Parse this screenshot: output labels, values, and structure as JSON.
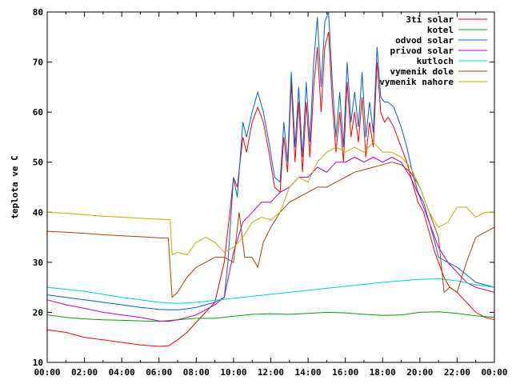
{
  "chart_data": {
    "type": "line",
    "title": "",
    "xlabel": "",
    "ylabel": "teplota ve C",
    "xlim": [
      0,
      24
    ],
    "ylim": [
      10,
      80
    ],
    "grid": false,
    "legend_position": "top-right",
    "x_tick_labels": [
      "00:00",
      "02:00",
      "04:00",
      "06:00",
      "08:00",
      "10:00",
      "12:00",
      "14:00",
      "16:00",
      "18:00",
      "20:00",
      "22:00",
      "00:00"
    ],
    "y_ticks": [
      10,
      20,
      30,
      40,
      50,
      60,
      70,
      80
    ],
    "series": [
      {
        "name": "3ti solar",
        "color": "#ff0000",
        "points": [
          [
            0,
            16.5
          ],
          [
            1,
            16.0
          ],
          [
            2,
            15.0
          ],
          [
            3,
            14.5
          ],
          [
            4,
            14.0
          ],
          [
            5,
            13.5
          ],
          [
            6,
            13.2
          ],
          [
            6.5,
            13.3
          ],
          [
            7,
            14.5
          ],
          [
            7.5,
            16
          ],
          [
            8,
            18
          ],
          [
            8.5,
            20
          ],
          [
            9,
            22
          ],
          [
            9.5,
            30
          ],
          [
            9.8,
            40
          ],
          [
            10,
            47
          ],
          [
            10.2,
            45
          ],
          [
            10.5,
            55
          ],
          [
            10.7,
            52
          ],
          [
            11,
            58
          ],
          [
            11.3,
            61
          ],
          [
            11.6,
            58
          ],
          [
            11.9,
            52
          ],
          [
            12.2,
            45
          ],
          [
            12.5,
            44
          ],
          [
            12.7,
            55
          ],
          [
            12.9,
            48
          ],
          [
            13.1,
            66
          ],
          [
            13.3,
            50
          ],
          [
            13.5,
            62
          ],
          [
            13.7,
            48
          ],
          [
            13.9,
            62
          ],
          [
            14.1,
            51
          ],
          [
            14.3,
            65
          ],
          [
            14.5,
            73
          ],
          [
            14.7,
            60
          ],
          [
            14.9,
            73
          ],
          [
            15.1,
            76
          ],
          [
            15.3,
            62
          ],
          [
            15.5,
            52
          ],
          [
            15.7,
            60
          ],
          [
            15.9,
            50
          ],
          [
            16.1,
            66
          ],
          [
            16.3,
            55
          ],
          [
            16.5,
            60
          ],
          [
            16.7,
            54
          ],
          [
            16.9,
            63
          ],
          [
            17.1,
            51
          ],
          [
            17.3,
            58
          ],
          [
            17.5,
            53
          ],
          [
            17.7,
            70
          ],
          [
            17.9,
            60
          ],
          [
            18.1,
            58
          ],
          [
            18.3,
            59
          ],
          [
            18.6,
            57
          ],
          [
            19,
            53
          ],
          [
            19.3,
            50
          ],
          [
            19.6,
            46
          ],
          [
            19.9,
            42
          ],
          [
            20.2,
            40
          ],
          [
            20.5,
            36
          ],
          [
            20.8,
            32
          ],
          [
            21,
            30
          ],
          [
            21.3,
            27
          ],
          [
            21.6,
            25
          ],
          [
            22,
            24
          ],
          [
            22.5,
            22
          ],
          [
            23,
            20
          ],
          [
            23.5,
            19
          ],
          [
            24,
            18.5
          ]
        ]
      },
      {
        "name": "kotel",
        "color": "#00a000",
        "points": [
          [
            0,
            19.5
          ],
          [
            1,
            19.0
          ],
          [
            2,
            18.7
          ],
          [
            3,
            18.5
          ],
          [
            4,
            18.4
          ],
          [
            5,
            18.3
          ],
          [
            6,
            18.2
          ],
          [
            7,
            18.5
          ],
          [
            8,
            18.8
          ],
          [
            9,
            18.8
          ],
          [
            10,
            19.2
          ],
          [
            11,
            19.6
          ],
          [
            12,
            19.7
          ],
          [
            13,
            19.6
          ],
          [
            14,
            19.8
          ],
          [
            15,
            20.0
          ],
          [
            16,
            19.9
          ],
          [
            17,
            19.6
          ],
          [
            18,
            19.4
          ],
          [
            19,
            19.5
          ],
          [
            20,
            20.0
          ],
          [
            21,
            20.1
          ],
          [
            22,
            19.8
          ],
          [
            23,
            19.3
          ],
          [
            24,
            19.0
          ]
        ]
      },
      {
        "name": "odvod solar",
        "color": "#0060e0",
        "points": [
          [
            0,
            23.5
          ],
          [
            1,
            23.0
          ],
          [
            2,
            22.5
          ],
          [
            3,
            22.0
          ],
          [
            4,
            21.5
          ],
          [
            5,
            21.0
          ],
          [
            6,
            20.6
          ],
          [
            6.5,
            20.5
          ],
          [
            7,
            20.5
          ],
          [
            7.5,
            20.7
          ],
          [
            8,
            21
          ],
          [
            8.5,
            21.5
          ],
          [
            9,
            22
          ],
          [
            9.5,
            23
          ],
          [
            9.7,
            30
          ],
          [
            10,
            47
          ],
          [
            10.2,
            43
          ],
          [
            10.5,
            58
          ],
          [
            10.7,
            55
          ],
          [
            11,
            60
          ],
          [
            11.3,
            64
          ],
          [
            11.6,
            60
          ],
          [
            11.9,
            54
          ],
          [
            12.2,
            47
          ],
          [
            12.5,
            46
          ],
          [
            12.7,
            58
          ],
          [
            12.9,
            50
          ],
          [
            13.1,
            68
          ],
          [
            13.3,
            53
          ],
          [
            13.5,
            65
          ],
          [
            13.7,
            51
          ],
          [
            13.9,
            66
          ],
          [
            14.1,
            54
          ],
          [
            14.3,
            70
          ],
          [
            14.5,
            79
          ],
          [
            14.7,
            65
          ],
          [
            14.9,
            78
          ],
          [
            15.1,
            80
          ],
          [
            15.3,
            66
          ],
          [
            15.5,
            55
          ],
          [
            15.7,
            64
          ],
          [
            15.9,
            53
          ],
          [
            16.1,
            70
          ],
          [
            16.3,
            58
          ],
          [
            16.5,
            64
          ],
          [
            16.7,
            57
          ],
          [
            16.9,
            68
          ],
          [
            17.1,
            55
          ],
          [
            17.3,
            62
          ],
          [
            17.5,
            56
          ],
          [
            17.7,
            73
          ],
          [
            17.9,
            63
          ],
          [
            18.1,
            62
          ],
          [
            18.3,
            62
          ],
          [
            18.6,
            61
          ],
          [
            19,
            57
          ],
          [
            19.3,
            53
          ],
          [
            19.6,
            48
          ],
          [
            19.9,
            44
          ],
          [
            20.2,
            42
          ],
          [
            20.5,
            38
          ],
          [
            20.8,
            34
          ],
          [
            21,
            31
          ],
          [
            21.5,
            30
          ],
          [
            22,
            29
          ],
          [
            22.5,
            27.5
          ],
          [
            23,
            26
          ],
          [
            23.5,
            25.5
          ],
          [
            24,
            25
          ]
        ]
      },
      {
        "name": "privod solar",
        "color": "#c000c0",
        "points": [
          [
            0,
            22.5
          ],
          [
            1,
            21.5
          ],
          [
            2,
            20.8
          ],
          [
            3,
            20.0
          ],
          [
            4,
            19.5
          ],
          [
            5,
            19.0
          ],
          [
            6,
            18.3
          ],
          [
            6.5,
            18.2
          ],
          [
            7,
            18.5
          ],
          [
            8,
            19.5
          ],
          [
            9,
            21.5
          ],
          [
            9.5,
            23
          ],
          [
            10,
            32
          ],
          [
            10.5,
            38
          ],
          [
            11,
            40
          ],
          [
            11.5,
            42
          ],
          [
            12,
            42
          ],
          [
            12.5,
            44
          ],
          [
            13,
            45
          ],
          [
            13.5,
            47
          ],
          [
            14,
            47
          ],
          [
            14.5,
            49
          ],
          [
            15,
            48
          ],
          [
            15.5,
            50
          ],
          [
            16,
            50
          ],
          [
            16.5,
            51
          ],
          [
            17,
            50
          ],
          [
            17.5,
            51
          ],
          [
            18,
            50
          ],
          [
            18.5,
            51
          ],
          [
            19,
            50
          ],
          [
            19.5,
            47
          ],
          [
            20,
            43
          ],
          [
            20.5,
            38
          ],
          [
            21,
            33
          ],
          [
            21.5,
            30
          ],
          [
            22,
            28
          ],
          [
            22.5,
            26
          ],
          [
            23,
            25
          ],
          [
            23.5,
            24.5
          ],
          [
            24,
            24
          ]
        ]
      },
      {
        "name": "kutloch",
        "color": "#00d0d0",
        "points": [
          [
            0,
            25
          ],
          [
            1,
            24.6
          ],
          [
            2,
            24.2
          ],
          [
            3,
            23.6
          ],
          [
            4,
            23.0
          ],
          [
            5,
            22.5
          ],
          [
            6,
            22.0
          ],
          [
            7,
            21.8
          ],
          [
            8,
            22.0
          ],
          [
            9,
            22.4
          ],
          [
            10,
            22.8
          ],
          [
            11,
            23.2
          ],
          [
            12,
            23.6
          ],
          [
            13,
            24.0
          ],
          [
            14,
            24.4
          ],
          [
            15,
            24.8
          ],
          [
            16,
            25.2
          ],
          [
            17,
            25.6
          ],
          [
            18,
            26.0
          ],
          [
            19,
            26.3
          ],
          [
            20,
            26.6
          ],
          [
            21,
            26.7
          ],
          [
            22,
            26.3
          ],
          [
            23,
            25.5
          ],
          [
            24,
            25
          ]
        ]
      },
      {
        "name": "vymenik dole",
        "color": "#b04000",
        "points": [
          [
            0,
            36.2
          ],
          [
            1,
            36.0
          ],
          [
            2,
            35.8
          ],
          [
            3,
            35.5
          ],
          [
            4,
            35.3
          ],
          [
            5,
            35.1
          ],
          [
            6,
            34.9
          ],
          [
            6.5,
            34.8
          ],
          [
            6.7,
            23
          ],
          [
            7,
            24
          ],
          [
            7.5,
            27
          ],
          [
            8,
            29
          ],
          [
            8.5,
            30
          ],
          [
            9,
            31
          ],
          [
            9.5,
            31
          ],
          [
            10,
            30
          ],
          [
            10.3,
            40
          ],
          [
            10.6,
            31
          ],
          [
            11,
            31
          ],
          [
            11.3,
            29
          ],
          [
            11.6,
            34
          ],
          [
            12,
            37
          ],
          [
            12.5,
            40
          ],
          [
            13,
            42
          ],
          [
            13.5,
            43
          ],
          [
            14,
            44
          ],
          [
            14.5,
            45
          ],
          [
            15,
            45
          ],
          [
            15.5,
            46
          ],
          [
            16,
            47
          ],
          [
            16.5,
            48
          ],
          [
            17,
            48.5
          ],
          [
            17.5,
            49
          ],
          [
            18,
            49.5
          ],
          [
            18.5,
            50
          ],
          [
            19,
            49.5
          ],
          [
            19.5,
            48
          ],
          [
            20,
            45
          ],
          [
            20.5,
            40
          ],
          [
            21,
            35
          ],
          [
            21.3,
            24
          ],
          [
            21.6,
            25
          ],
          [
            22,
            24
          ],
          [
            22.5,
            30
          ],
          [
            23,
            35
          ],
          [
            23.5,
            36
          ],
          [
            24,
            37
          ]
        ]
      },
      {
        "name": "vymenik nahore",
        "color": "#c0b000",
        "points": [
          [
            0,
            40
          ],
          [
            1,
            39.8
          ],
          [
            2,
            39.5
          ],
          [
            3,
            39.2
          ],
          [
            4,
            39
          ],
          [
            5,
            38.8
          ],
          [
            6,
            38.6
          ],
          [
            6.6,
            38.5
          ],
          [
            6.7,
            31.5
          ],
          [
            7,
            32
          ],
          [
            7.5,
            31.5
          ],
          [
            8,
            34
          ],
          [
            8.5,
            35
          ],
          [
            9,
            34
          ],
          [
            9.5,
            32
          ],
          [
            10,
            33
          ],
          [
            10.5,
            35
          ],
          [
            11,
            38
          ],
          [
            11.5,
            39
          ],
          [
            12,
            38.5
          ],
          [
            12.5,
            40
          ],
          [
            13,
            45
          ],
          [
            13.5,
            47
          ],
          [
            14,
            46
          ],
          [
            14.5,
            50
          ],
          [
            15,
            52
          ],
          [
            15.5,
            53
          ],
          [
            16,
            52
          ],
          [
            16.5,
            53
          ],
          [
            17,
            52
          ],
          [
            17.5,
            54
          ],
          [
            18,
            52
          ],
          [
            18.5,
            52
          ],
          [
            19,
            51
          ],
          [
            19.5,
            49
          ],
          [
            20,
            45
          ],
          [
            20.5,
            40
          ],
          [
            21,
            37
          ],
          [
            21.5,
            38
          ],
          [
            22,
            41
          ],
          [
            22.5,
            41
          ],
          [
            23,
            39
          ],
          [
            23.5,
            40
          ],
          [
            24,
            40
          ]
        ]
      }
    ]
  }
}
